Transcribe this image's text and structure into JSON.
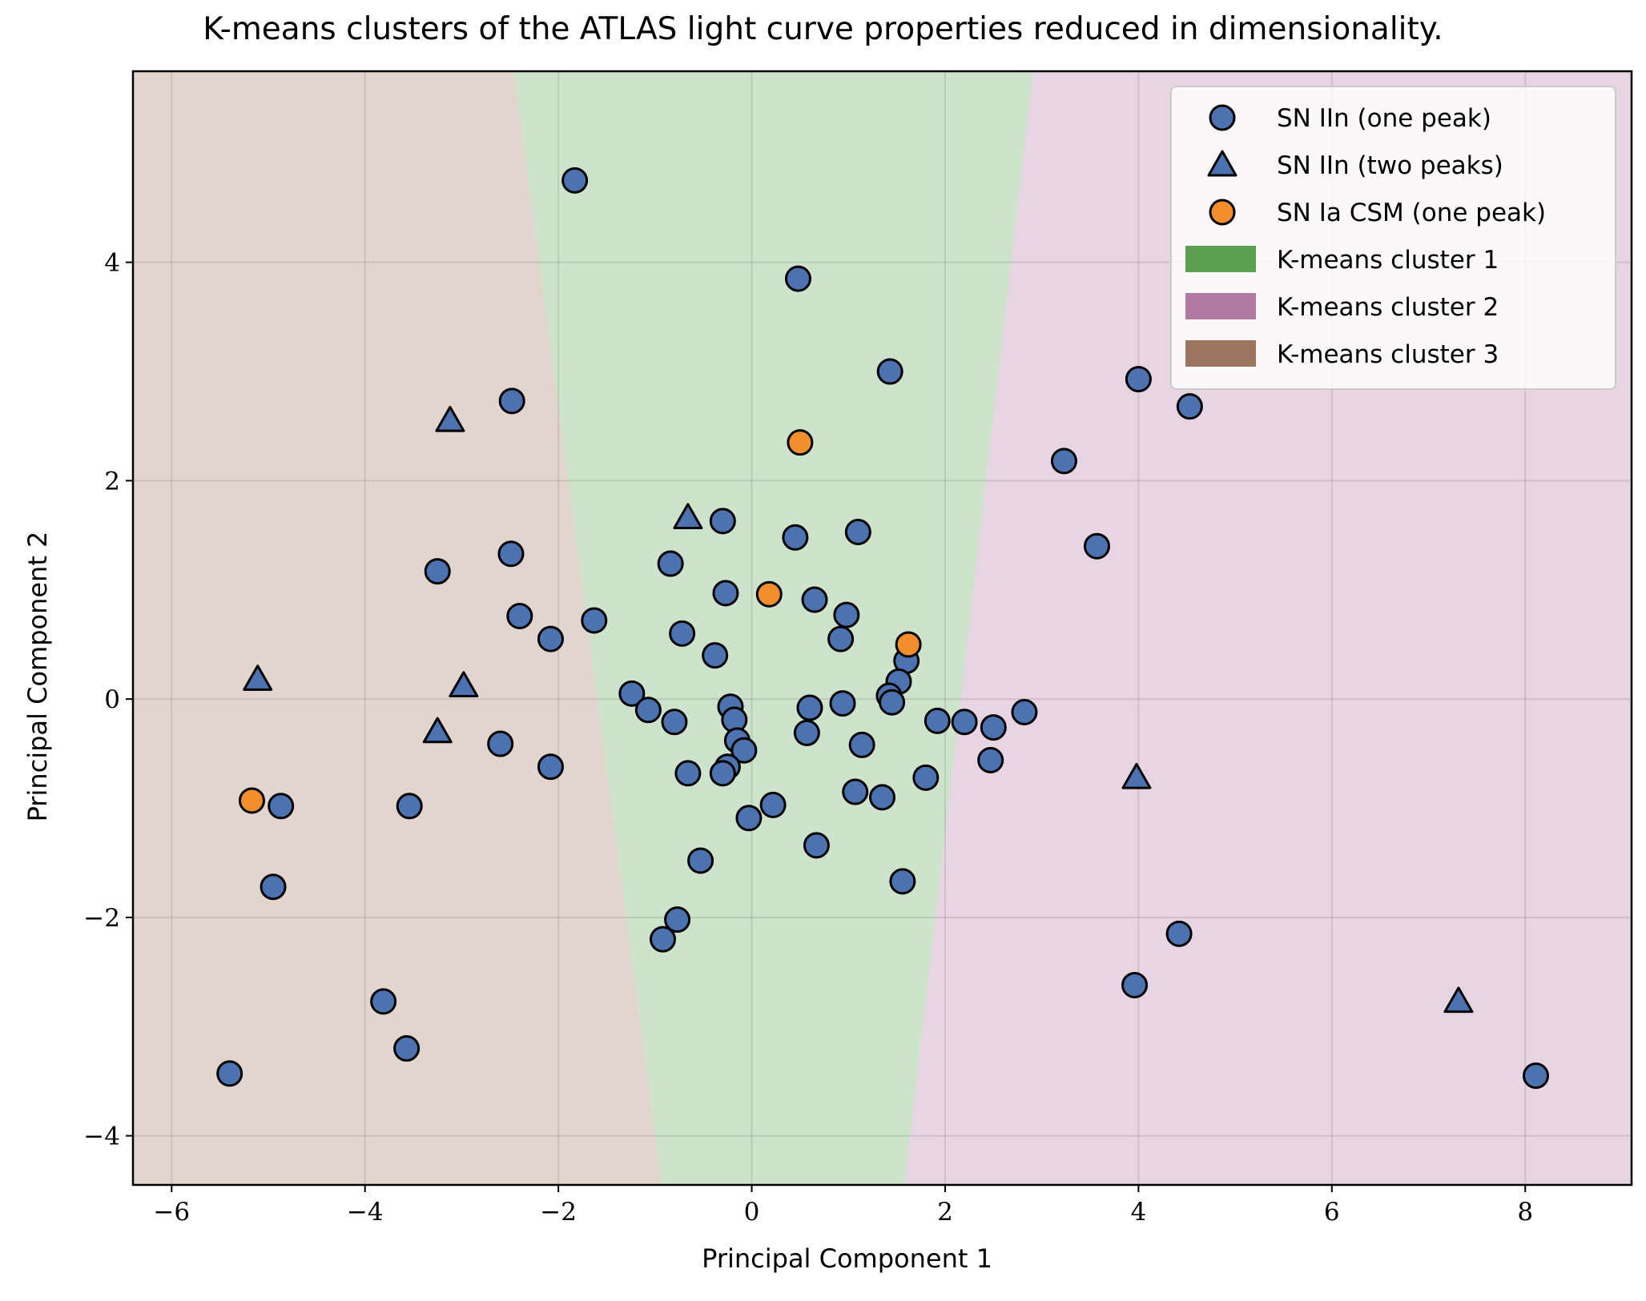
{
  "chart_data": {
    "type": "scatter",
    "title": "K-means clusters of the ATLAS light curve properties reduced in dimensionality.",
    "xlabel": "Principal Component 1",
    "ylabel": "Principal Component 2",
    "xlim": [
      -6.4,
      9.1
    ],
    "ylim": [
      -4.45,
      5.75
    ],
    "xticks": [
      -6,
      -4,
      -2,
      0,
      2,
      4,
      6,
      8
    ],
    "yticks": [
      -4,
      -2,
      0,
      2,
      4
    ],
    "xtick_labels": [
      "−6",
      "−4",
      "−2",
      "0",
      "2",
      "4",
      "6",
      "8"
    ],
    "ytick_labels": [
      "−4",
      "−2",
      "0",
      "2",
      "4"
    ],
    "grid": true,
    "legend_placement": "top-right",
    "colors": {
      "one_peak": "#4c72b0",
      "ia_csm": "#f28e2b",
      "cluster1": "#5aa050",
      "cluster2": "#b07aa1",
      "cluster3": "#9c755f",
      "cluster1_bg": "#cde3cb",
      "cluster2_bg": "#e8d5e2",
      "cluster3_bg": "#e2d5ce"
    },
    "series": [
      {
        "name": "SN IIn (one peak)",
        "marker": "circle",
        "points": [
          [
            -1.83,
            4.75
          ],
          [
            0.48,
            3.85
          ],
          [
            1.43,
            3.0
          ],
          [
            4.0,
            2.93
          ],
          [
            4.53,
            2.68
          ],
          [
            -2.48,
            2.73
          ],
          [
            3.23,
            2.18
          ],
          [
            3.57,
            1.4
          ],
          [
            -0.3,
            1.63
          ],
          [
            0.45,
            1.48
          ],
          [
            1.1,
            1.53
          ],
          [
            -2.49,
            1.33
          ],
          [
            -3.25,
            1.17
          ],
          [
            -0.84,
            1.24
          ],
          [
            -0.27,
            0.97
          ],
          [
            0.65,
            0.91
          ],
          [
            0.98,
            0.77
          ],
          [
            -2.4,
            0.76
          ],
          [
            -1.63,
            0.72
          ],
          [
            -2.08,
            0.55
          ],
          [
            -0.72,
            0.6
          ],
          [
            0.92,
            0.55
          ],
          [
            -0.38,
            0.4
          ],
          [
            1.6,
            0.35
          ],
          [
            1.52,
            0.16
          ],
          [
            1.42,
            0.03
          ],
          [
            1.45,
            -0.03
          ],
          [
            -1.24,
            0.05
          ],
          [
            -1.07,
            -0.1
          ],
          [
            -0.22,
            -0.07
          ],
          [
            0.6,
            -0.08
          ],
          [
            0.94,
            -0.04
          ],
          [
            2.82,
            -0.12
          ],
          [
            -0.8,
            -0.21
          ],
          [
            -0.18,
            -0.19
          ],
          [
            1.92,
            -0.2
          ],
          [
            2.2,
            -0.21
          ],
          [
            2.5,
            -0.26
          ],
          [
            0.57,
            -0.31
          ],
          [
            -0.15,
            -0.38
          ],
          [
            -0.08,
            -0.47
          ],
          [
            1.14,
            -0.42
          ],
          [
            -2.6,
            -0.41
          ],
          [
            -2.08,
            -0.62
          ],
          [
            -0.25,
            -0.62
          ],
          [
            -0.3,
            -0.68
          ],
          [
            -0.66,
            -0.68
          ],
          [
            2.47,
            -0.56
          ],
          [
            1.8,
            -0.72
          ],
          [
            -4.87,
            -0.98
          ],
          [
            -3.54,
            -0.98
          ],
          [
            0.22,
            -0.97
          ],
          [
            1.07,
            -0.85
          ],
          [
            1.35,
            -0.9
          ],
          [
            -0.03,
            -1.09
          ],
          [
            0.67,
            -1.34
          ],
          [
            -0.53,
            -1.48
          ],
          [
            1.56,
            -1.67
          ],
          [
            -4.95,
            -1.72
          ],
          [
            -0.77,
            -2.02
          ],
          [
            -0.92,
            -2.2
          ],
          [
            4.42,
            -2.15
          ],
          [
            3.96,
            -2.62
          ],
          [
            -3.81,
            -2.77
          ],
          [
            -3.57,
            -3.2
          ],
          [
            -5.4,
            -3.43
          ],
          [
            8.11,
            -3.45
          ]
        ]
      },
      {
        "name": "SN IIn (two peaks)",
        "marker": "triangle",
        "points": [
          [
            -3.12,
            2.55
          ],
          [
            -0.66,
            1.66
          ],
          [
            -5.11,
            0.18
          ],
          [
            -2.98,
            0.12
          ],
          [
            -3.25,
            -0.3
          ],
          [
            3.98,
            -0.72
          ],
          [
            7.31,
            -2.77
          ]
        ]
      },
      {
        "name": "SN Ia CSM (one peak)",
        "marker": "circle",
        "points": [
          [
            0.5,
            2.35
          ],
          [
            0.18,
            0.96
          ],
          [
            1.62,
            0.5
          ],
          [
            -5.17,
            -0.93
          ]
        ]
      }
    ],
    "clusters": [
      {
        "name": "K-means cluster 1",
        "boundary_left": [
          [
            -2.46,
            5.75
          ],
          [
            -0.93,
            -4.45
          ]
        ],
        "boundary_right": [
          [
            2.91,
            5.75
          ],
          [
            1.58,
            -4.45
          ]
        ]
      },
      {
        "name": "K-means cluster 2"
      },
      {
        "name": "K-means cluster 3"
      }
    ]
  }
}
